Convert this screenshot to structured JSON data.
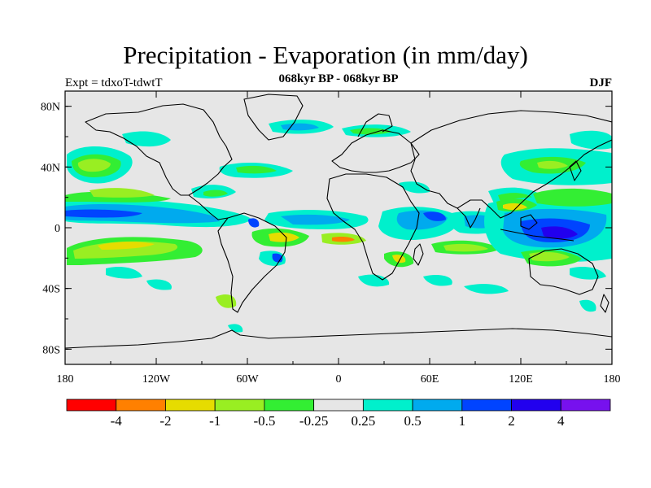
{
  "title": "Precipitation - Evaporation (in mm/day)",
  "subtitle": "068kyr BP - 068kyr BP",
  "experiment_label": "Expt = tdxoT-tdwtT",
  "season_label": "DJF",
  "map": {
    "projection": "cylindrical-equidistant",
    "lon_range": [
      -180,
      180
    ],
    "lat_range": [
      -90,
      90
    ],
    "land_outline_color": "#000000",
    "neutral_fill": "#e6e6e6",
    "lat_ticks": [
      {
        "value": 80,
        "label": "80N"
      },
      {
        "value": 40,
        "label": "40N"
      },
      {
        "value": 0,
        "label": "0"
      },
      {
        "value": -40,
        "label": "40S"
      },
      {
        "value": -80,
        "label": "80S"
      }
    ],
    "lon_ticks": [
      {
        "value": -180,
        "label": "180"
      },
      {
        "value": -120,
        "label": "120W"
      },
      {
        "value": -60,
        "label": "60W"
      },
      {
        "value": 0,
        "label": "0"
      },
      {
        "value": 60,
        "label": "60E"
      },
      {
        "value": 120,
        "label": "120E"
      },
      {
        "value": 180,
        "label": "180"
      }
    ]
  },
  "colorbar": {
    "colors": [
      "#ff0000",
      "#ff8000",
      "#e6dc00",
      "#99ee22",
      "#33ee33",
      "#e6e6e6",
      "#00f0cc",
      "#00aaee",
      "#0044ff",
      "#2200ee",
      "#7711ee"
    ],
    "labels": [
      "-4",
      "-2",
      "-1",
      "-0.5",
      "-0.25",
      "0.25",
      "0.5",
      "1",
      "2",
      "4"
    ]
  }
}
